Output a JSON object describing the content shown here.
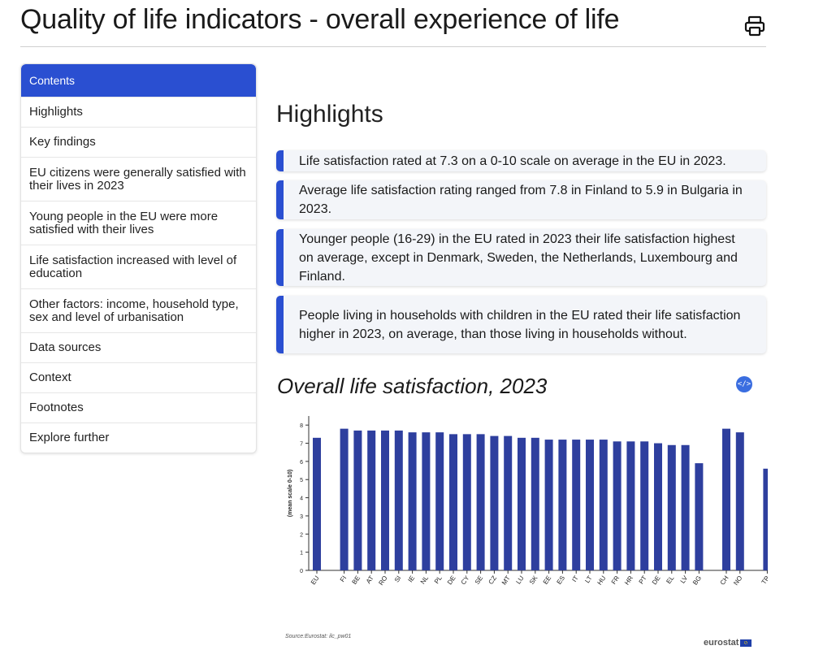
{
  "page": {
    "title": "Quality of life indicators - overall experience of life",
    "print_icon": "printer-icon"
  },
  "toc": {
    "header": "Contents",
    "items": [
      "Highlights",
      "Key findings",
      "EU citizens were generally satisfied with their lives in 2023",
      "Young people in the EU were more satisfied with their lives",
      "Life satisfaction increased with level of education",
      "Other factors: income, household type, sex and level of urbanisation",
      "Data sources",
      "Context",
      "Footnotes",
      "Explore further"
    ]
  },
  "highlights": {
    "title": "Highlights",
    "items": [
      "Life satisfaction rated at 7.3 on a 0-10 scale on average in the EU in 2023.",
      "Average life satisfaction rating ranged from 7.8 in Finland to 5.9 in Bulgaria in 2023.",
      "Younger people (16-29) in the EU rated in 2023 their life satisfaction highest on average, except in Denmark, Sweden, the Netherlands, Luxembourg and Finland.",
      "People living in households with children in the EU rated their life satisfaction higher in 2023, on average, than those living in households without."
    ]
  },
  "chart": {
    "embed_label": "</>",
    "source": "Source:Eurostat: ilc_pw01",
    "logo": "eurostat"
  },
  "colors": {
    "accent": "#2a4fd1",
    "bar": "#2e3f9e",
    "highlight_bg": "#f3f5f9"
  },
  "chart_data": {
    "type": "bar",
    "title": "Overall life satisfaction, 2023",
    "xlabel": "",
    "ylabel": "(mean scale 0-10)",
    "ylim": [
      0,
      8.5
    ],
    "yticks": [
      0,
      1,
      2,
      3,
      4,
      5,
      6,
      7,
      8
    ],
    "grid": false,
    "categories": [
      "EU",
      "",
      "FI",
      "BE",
      "AT",
      "RO",
      "SI",
      "IE",
      "NL",
      "PL",
      "DE",
      "CY",
      "SE",
      "CZ",
      "MT",
      "LU",
      "SK",
      "EE",
      "ES",
      "IT",
      "LT",
      "HU",
      "FR",
      "HR",
      "PT",
      "DE",
      "EL",
      "LV",
      "BG",
      "",
      "CH",
      "NO",
      "",
      "TR"
    ],
    "values": [
      7.3,
      null,
      7.8,
      7.7,
      7.7,
      7.7,
      7.7,
      7.6,
      7.6,
      7.6,
      7.5,
      7.5,
      7.5,
      7.4,
      7.4,
      7.3,
      7.3,
      7.2,
      7.2,
      7.2,
      7.2,
      7.2,
      7.1,
      7.1,
      7.1,
      7.0,
      6.9,
      6.9,
      5.9,
      null,
      7.8,
      7.6,
      null,
      5.6
    ]
  }
}
